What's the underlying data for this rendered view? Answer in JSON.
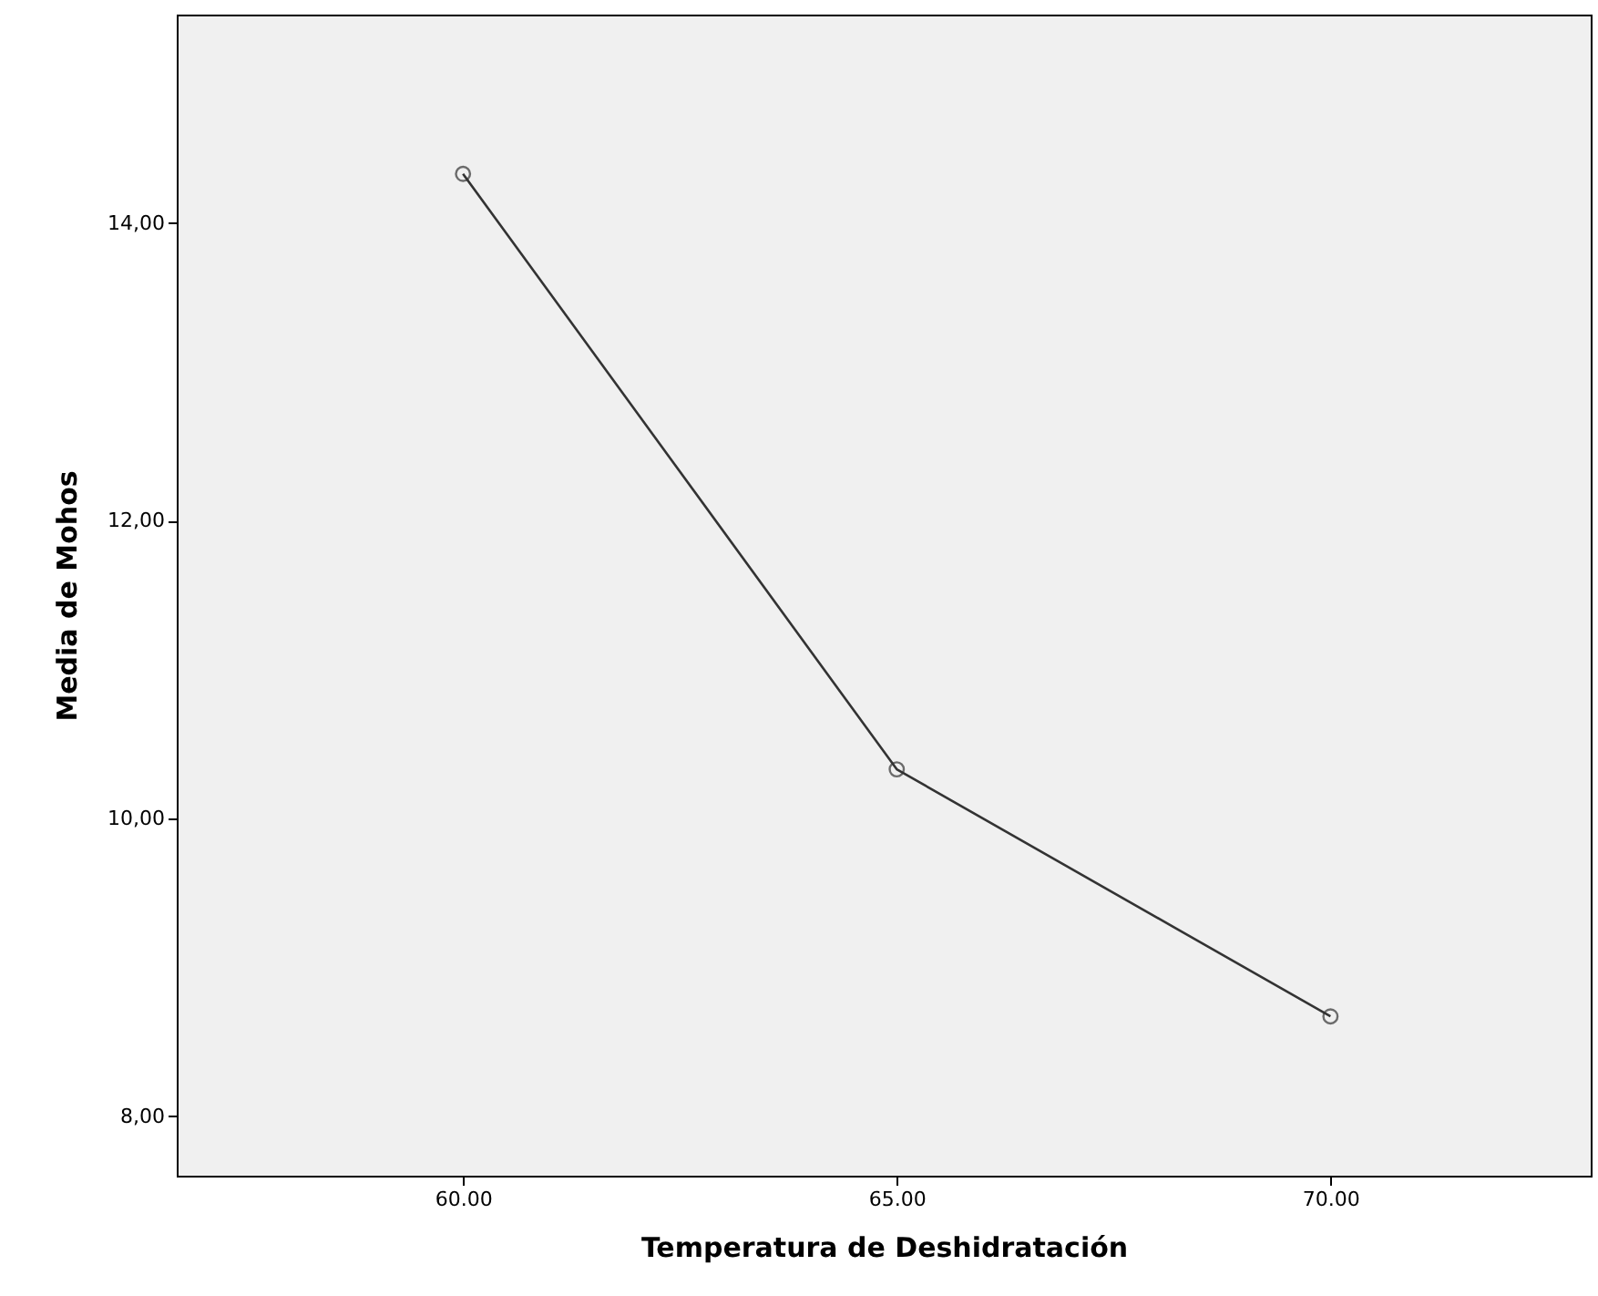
{
  "chart_data": {
    "type": "line",
    "xlabel": "Temperatura de Deshidratación",
    "ylabel": "Media de Mohos",
    "x": [
      60,
      65,
      70
    ],
    "series": [
      {
        "color": "#333333",
        "values": [
          14.33,
          10.33,
          8.67
        ]
      }
    ],
    "xlim": [
      56.7,
      73
    ],
    "ylim": [
      7.6,
      15.4
    ],
    "xticks": [
      {
        "value": 60,
        "label": "60.00"
      },
      {
        "value": 65,
        "label": "65.00"
      },
      {
        "value": 70,
        "label": "70.00"
      }
    ],
    "yticks": [
      {
        "value": 8,
        "label": "8,00"
      },
      {
        "value": 10,
        "label": "10,00"
      },
      {
        "value": 12,
        "label": "12,00"
      },
      {
        "value": 14,
        "label": "14,00"
      }
    ],
    "grid": false,
    "marker": "circle",
    "line_style": "solid"
  }
}
